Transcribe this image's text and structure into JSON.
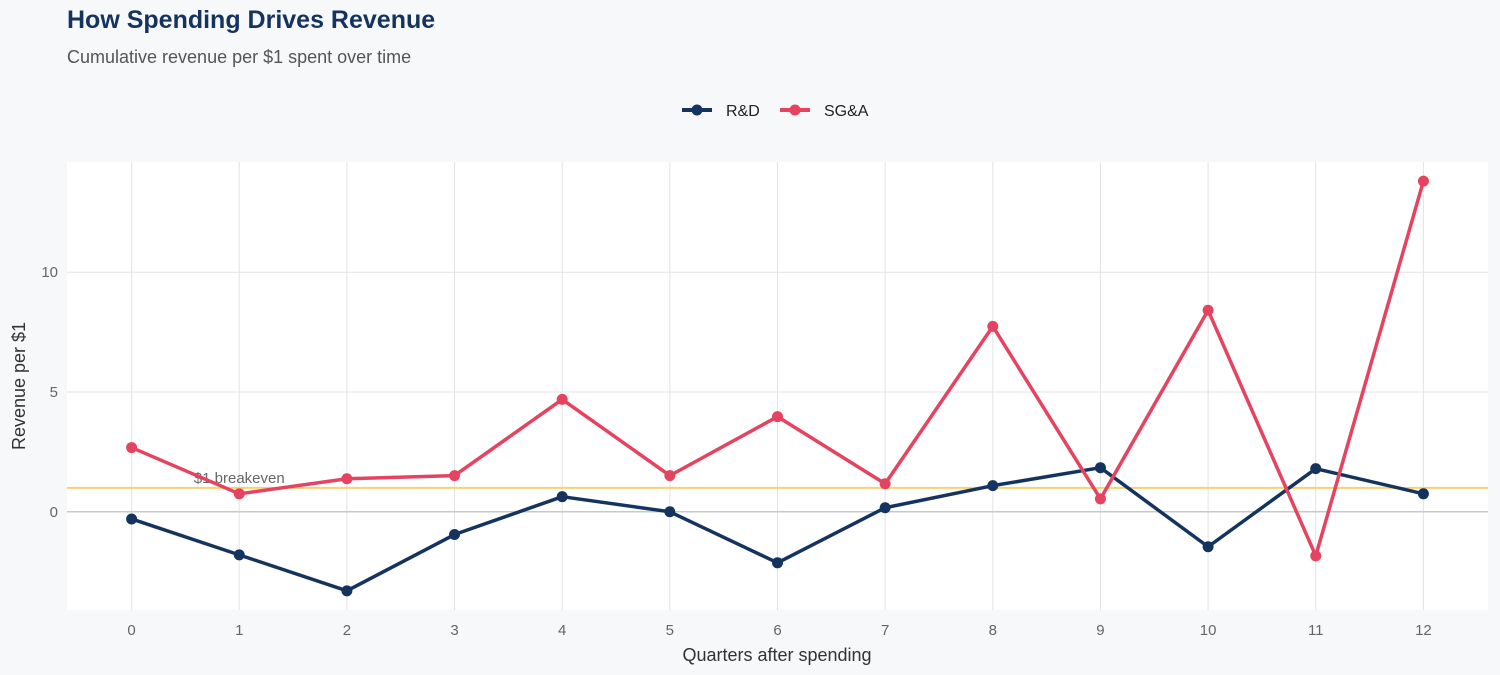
{
  "chart_data": {
    "type": "line",
    "title": "How Spending Drives Revenue",
    "subtitle": "Cumulative revenue per $1 spent over time",
    "xlabel": "Quarters after spending",
    "ylabel": "Revenue per $1",
    "x": [
      0,
      1,
      2,
      3,
      4,
      5,
      6,
      7,
      8,
      9,
      10,
      11,
      12
    ],
    "xlim": [
      -0.6,
      12.6
    ],
    "ylim": [
      -4.1,
      14.6
    ],
    "yticks": [
      0,
      5,
      10
    ],
    "grid": true,
    "legend_position": "top-center",
    "series": [
      {
        "name": "R&D",
        "color": "#14345f",
        "values": [
          -0.3,
          -1.8,
          -3.3,
          -0.95,
          0.63,
          0.0,
          -2.13,
          0.17,
          1.09,
          1.84,
          -1.46,
          1.8,
          0.75
        ]
      },
      {
        "name": "SG&A",
        "color": "#e5435f",
        "values": [
          2.68,
          0.75,
          1.38,
          1.51,
          4.69,
          1.51,
          3.97,
          1.17,
          7.74,
          0.54,
          8.41,
          -1.84,
          13.8
        ]
      }
    ],
    "reference_line": {
      "y": 1,
      "label": "$1 breakeven",
      "color": "#f9d270"
    }
  }
}
